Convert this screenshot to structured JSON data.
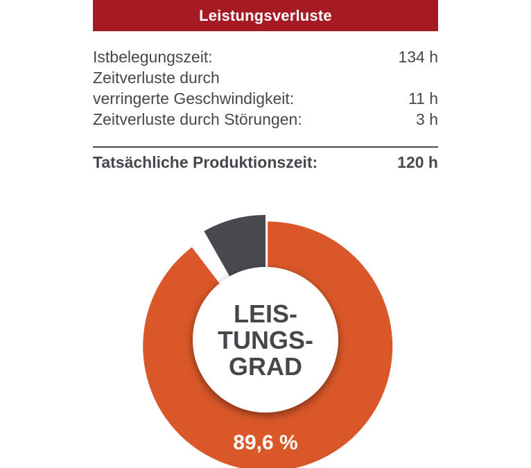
{
  "header": {
    "title": "Leistungsverluste"
  },
  "breakdown": {
    "rows": [
      {
        "label": "Istbelegungszeit:",
        "value": "134 h"
      },
      {
        "label": "Zeitverluste durch",
        "value": ""
      },
      {
        "label": "verringerte Geschwindigkeit:",
        "value": "11 h"
      },
      {
        "label": "Zeitverluste durch Störungen:",
        "value": "3 h"
      }
    ],
    "total": {
      "label": "Tatsächliche Produktionszeit:",
      "value": "120 h"
    }
  },
  "chart_data": {
    "type": "pie",
    "variant": "donut",
    "center_label_lines": [
      "LEIS-",
      "TUNGS-",
      "GRAD"
    ],
    "slices": [
      {
        "value": 89.6,
        "label": "89,6 %",
        "color": "#d95728",
        "exploded": true
      },
      {
        "value": 2.2,
        "label": "",
        "color": "#ffffff"
      },
      {
        "value": 8.2,
        "label": "",
        "color": "#4a4950"
      }
    ]
  },
  "colors": {
    "header_bg": "#a61a24",
    "text": "#48464d",
    "slice_main": "#d95728",
    "slice_loss": "#4a4950"
  }
}
